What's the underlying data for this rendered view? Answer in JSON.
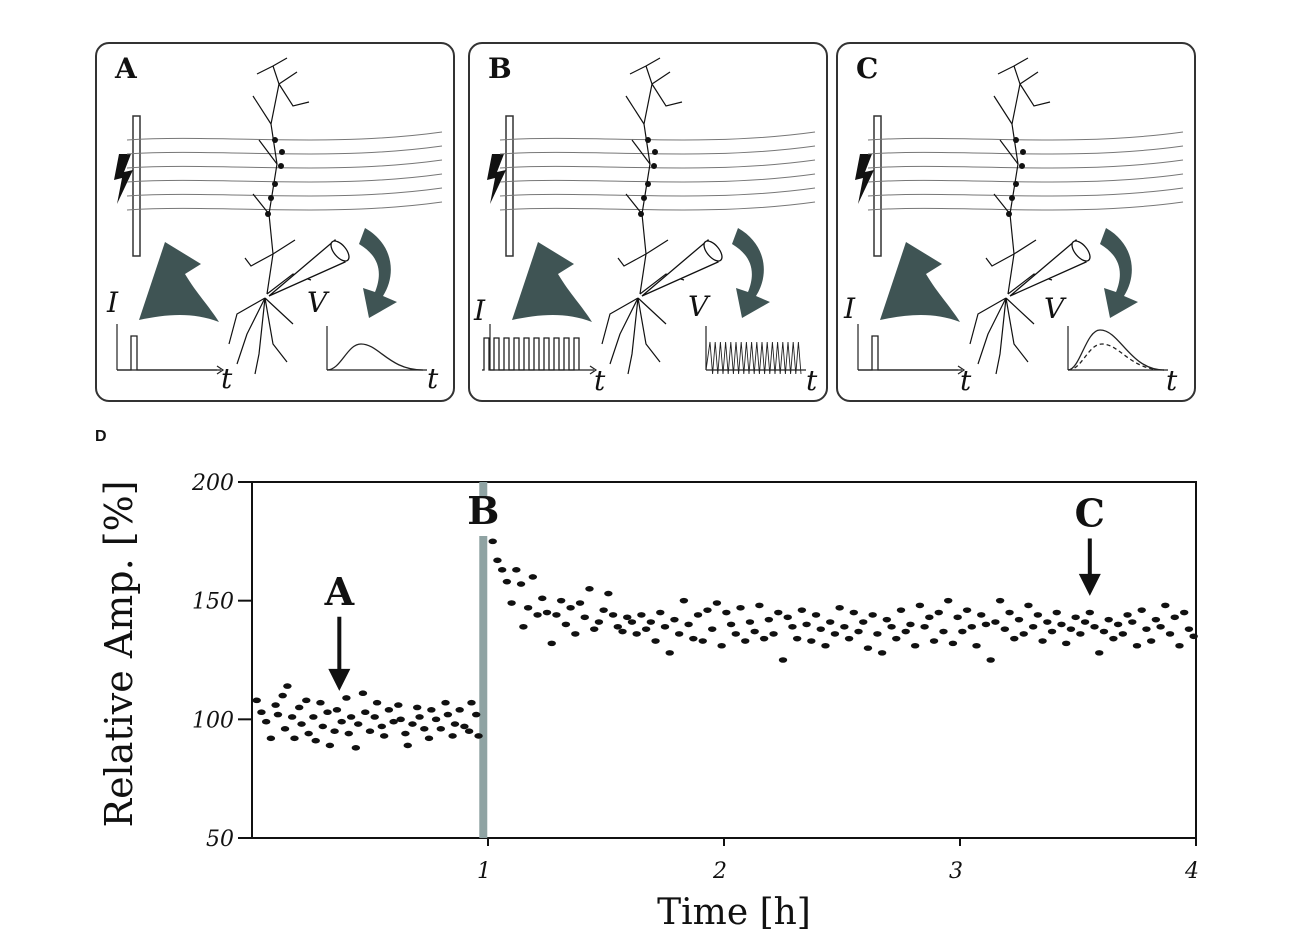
{
  "figure": {
    "panels": [
      {
        "id": "A",
        "letter": "A",
        "i_label": "I",
        "v_label": "V",
        "t_label": "t"
      },
      {
        "id": "B",
        "letter": "B",
        "i_label": "I",
        "v_label": "V",
        "t_label": "t"
      },
      {
        "id": "C",
        "letter": "C",
        "i_label": "I",
        "v_label": "V",
        "t_label": "t"
      }
    ],
    "panel_d_label": "D",
    "colors": {
      "arrow": "#3f5454",
      "marker_bar": "#8fa3a3",
      "points": "#111111",
      "line": "#111111"
    }
  },
  "chart_data": {
    "type": "scatter",
    "title": "",
    "xlabel": "Time [h]",
    "ylabel": "Relative Amp. [%]",
    "xlim": [
      0,
      4
    ],
    "ylim": [
      50,
      200
    ],
    "x_ticks": [
      1,
      2,
      3,
      4
    ],
    "y_ticks": [
      50,
      100,
      150,
      200
    ],
    "grid": false,
    "annotations": [
      {
        "label": "A",
        "x": 0.37,
        "type": "arrow-down",
        "y_tip": 112,
        "y_text": 155
      },
      {
        "label": "B",
        "x": 0.98,
        "type": "vertical-bar"
      },
      {
        "label": "C",
        "x": 3.55,
        "type": "arrow-down",
        "y_tip": 152,
        "y_text": 188
      }
    ],
    "series": [
      {
        "points_before": [
          [
            0.02,
            108
          ],
          [
            0.04,
            103
          ],
          [
            0.06,
            99
          ],
          [
            0.08,
            92
          ],
          [
            0.1,
            106
          ],
          [
            0.11,
            102
          ],
          [
            0.13,
            110
          ],
          [
            0.14,
            96
          ],
          [
            0.15,
            114
          ],
          [
            0.17,
            101
          ],
          [
            0.18,
            92
          ],
          [
            0.2,
            105
          ],
          [
            0.21,
            98
          ],
          [
            0.23,
            108
          ],
          [
            0.24,
            94
          ],
          [
            0.26,
            101
          ],
          [
            0.27,
            91
          ],
          [
            0.29,
            107
          ],
          [
            0.3,
            97
          ],
          [
            0.32,
            103
          ],
          [
            0.33,
            89
          ],
          [
            0.35,
            95
          ],
          [
            0.36,
            104
          ],
          [
            0.38,
            99
          ],
          [
            0.4,
            109
          ],
          [
            0.41,
            94
          ],
          [
            0.42,
            101
          ],
          [
            0.44,
            88
          ],
          [
            0.45,
            98
          ],
          [
            0.47,
            111
          ],
          [
            0.48,
            103
          ],
          [
            0.5,
            95
          ],
          [
            0.52,
            101
          ],
          [
            0.53,
            107
          ],
          [
            0.55,
            97
          ],
          [
            0.56,
            93
          ],
          [
            0.58,
            104
          ],
          [
            0.6,
            99
          ],
          [
            0.62,
            106
          ],
          [
            0.63,
            100
          ],
          [
            0.65,
            94
          ],
          [
            0.66,
            89
          ],
          [
            0.68,
            98
          ],
          [
            0.7,
            105
          ],
          [
            0.71,
            101
          ],
          [
            0.73,
            96
          ],
          [
            0.75,
            92
          ],
          [
            0.76,
            104
          ],
          [
            0.78,
            100
          ],
          [
            0.8,
            96
          ],
          [
            0.82,
            107
          ],
          [
            0.83,
            102
          ],
          [
            0.85,
            93
          ],
          [
            0.86,
            98
          ],
          [
            0.88,
            104
          ],
          [
            0.9,
            97
          ],
          [
            0.92,
            95
          ],
          [
            0.93,
            107
          ],
          [
            0.95,
            102
          ],
          [
            0.96,
            93
          ]
        ],
        "points_after": [
          [
            1.02,
            175
          ],
          [
            1.04,
            167
          ],
          [
            1.06,
            163
          ],
          [
            1.08,
            158
          ],
          [
            1.1,
            149
          ],
          [
            1.12,
            163
          ],
          [
            1.14,
            157
          ],
          [
            1.15,
            139
          ],
          [
            1.17,
            147
          ],
          [
            1.19,
            160
          ],
          [
            1.21,
            144
          ],
          [
            1.23,
            151
          ],
          [
            1.25,
            145
          ],
          [
            1.27,
            132
          ],
          [
            1.29,
            144
          ],
          [
            1.31,
            150
          ],
          [
            1.33,
            140
          ],
          [
            1.35,
            147
          ],
          [
            1.37,
            136
          ],
          [
            1.39,
            149
          ],
          [
            1.41,
            143
          ],
          [
            1.43,
            155
          ],
          [
            1.45,
            138
          ],
          [
            1.47,
            141
          ],
          [
            1.49,
            146
          ],
          [
            1.51,
            153
          ],
          [
            1.53,
            144
          ],
          [
            1.55,
            139
          ],
          [
            1.57,
            137
          ],
          [
            1.59,
            143
          ],
          [
            1.61,
            141
          ],
          [
            1.63,
            136
          ],
          [
            1.65,
            144
          ],
          [
            1.67,
            138
          ],
          [
            1.69,
            141
          ],
          [
            1.71,
            133
          ],
          [
            1.73,
            145
          ],
          [
            1.75,
            139
          ],
          [
            1.77,
            128
          ],
          [
            1.79,
            142
          ],
          [
            1.81,
            136
          ],
          [
            1.83,
            150
          ],
          [
            1.85,
            140
          ],
          [
            1.87,
            134
          ],
          [
            1.89,
            144
          ],
          [
            1.91,
            133
          ],
          [
            1.93,
            146
          ],
          [
            1.95,
            138
          ],
          [
            1.97,
            149
          ],
          [
            1.99,
            131
          ],
          [
            2.01,
            145
          ],
          [
            2.03,
            140
          ],
          [
            2.05,
            136
          ],
          [
            2.07,
            147
          ],
          [
            2.09,
            133
          ],
          [
            2.11,
            141
          ],
          [
            2.13,
            137
          ],
          [
            2.15,
            148
          ],
          [
            2.17,
            134
          ],
          [
            2.19,
            142
          ],
          [
            2.21,
            136
          ],
          [
            2.23,
            145
          ],
          [
            2.25,
            125
          ],
          [
            2.27,
            143
          ],
          [
            2.29,
            139
          ],
          [
            2.31,
            134
          ],
          [
            2.33,
            146
          ],
          [
            2.35,
            140
          ],
          [
            2.37,
            133
          ],
          [
            2.39,
            144
          ],
          [
            2.41,
            138
          ],
          [
            2.43,
            131
          ],
          [
            2.45,
            141
          ],
          [
            2.47,
            136
          ],
          [
            2.49,
            147
          ],
          [
            2.51,
            139
          ],
          [
            2.53,
            134
          ],
          [
            2.55,
            145
          ],
          [
            2.57,
            137
          ],
          [
            2.59,
            141
          ],
          [
            2.61,
            130
          ],
          [
            2.63,
            144
          ],
          [
            2.65,
            136
          ],
          [
            2.67,
            128
          ],
          [
            2.69,
            142
          ],
          [
            2.71,
            139
          ],
          [
            2.73,
            134
          ],
          [
            2.75,
            146
          ],
          [
            2.77,
            137
          ],
          [
            2.79,
            140
          ],
          [
            2.81,
            131
          ],
          [
            2.83,
            148
          ],
          [
            2.85,
            139
          ],
          [
            2.87,
            143
          ],
          [
            2.89,
            133
          ],
          [
            2.91,
            145
          ],
          [
            2.93,
            137
          ],
          [
            2.95,
            150
          ],
          [
            2.97,
            132
          ],
          [
            2.99,
            143
          ],
          [
            3.01,
            137
          ],
          [
            3.03,
            146
          ],
          [
            3.05,
            139
          ],
          [
            3.07,
            131
          ],
          [
            3.09,
            144
          ],
          [
            3.11,
            140
          ],
          [
            3.13,
            125
          ],
          [
            3.15,
            141
          ],
          [
            3.17,
            150
          ],
          [
            3.19,
            138
          ],
          [
            3.21,
            145
          ],
          [
            3.23,
            134
          ],
          [
            3.25,
            142
          ],
          [
            3.27,
            136
          ],
          [
            3.29,
            148
          ],
          [
            3.31,
            139
          ],
          [
            3.33,
            144
          ],
          [
            3.35,
            133
          ],
          [
            3.37,
            141
          ],
          [
            3.39,
            137
          ],
          [
            3.41,
            145
          ],
          [
            3.43,
            140
          ],
          [
            3.45,
            132
          ],
          [
            3.47,
            138
          ],
          [
            3.49,
            143
          ],
          [
            3.51,
            136
          ],
          [
            3.53,
            141
          ],
          [
            3.55,
            145
          ],
          [
            3.57,
            139
          ],
          [
            3.59,
            128
          ],
          [
            3.61,
            137
          ],
          [
            3.63,
            142
          ],
          [
            3.65,
            134
          ],
          [
            3.67,
            140
          ],
          [
            3.69,
            136
          ],
          [
            3.71,
            144
          ],
          [
            3.73,
            141
          ],
          [
            3.75,
            131
          ],
          [
            3.77,
            146
          ],
          [
            3.79,
            138
          ],
          [
            3.81,
            133
          ],
          [
            3.83,
            142
          ],
          [
            3.85,
            139
          ],
          [
            3.87,
            148
          ],
          [
            3.89,
            136
          ],
          [
            3.91,
            143
          ],
          [
            3.93,
            131
          ],
          [
            3.95,
            145
          ],
          [
            3.97,
            138
          ],
          [
            3.99,
            135
          ]
        ]
      }
    ]
  }
}
